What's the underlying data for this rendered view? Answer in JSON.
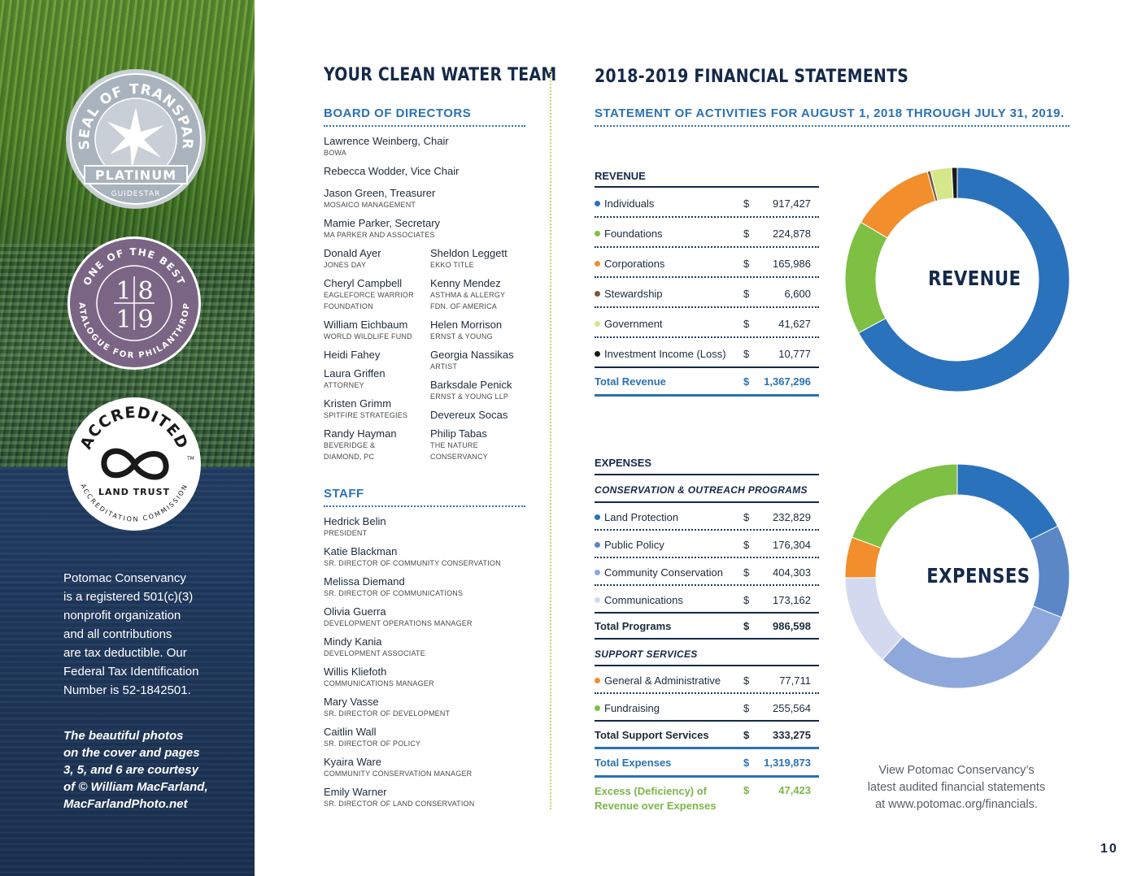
{
  "badges": {
    "transparency": {
      "arc_text": "SEAL OF TRANSPARENCY",
      "level": "PLATINUM",
      "org": "GUIDESTAR"
    },
    "best": {
      "arc_top": "ONE OF THE BEST",
      "years_top": "1|8",
      "years_bottom": "1|9",
      "arc_bottom": "CATALOGUE FOR PHILANTHROPY"
    },
    "accredited": {
      "arc_top": "ACCREDITED",
      "tm": "TM",
      "inner": "LAND TRUST",
      "arc_bottom": "ACCREDITATION COMMISSION"
    }
  },
  "sidebar": {
    "note_lines": [
      "Potomac Conservancy",
      "is a registered 501(c)(3)",
      "nonprofit organization",
      "and all contributions",
      "are tax deductible. Our",
      "Federal Tax Identification",
      "Number is 52-1842501."
    ],
    "credit_lines": [
      "The beautiful photos",
      "on the cover and pages",
      "3, 5, and 6 are courtesy",
      "of © William MacFarland,",
      "MacFarlandPhoto.net"
    ]
  },
  "team": {
    "title": "YOUR CLEAN WATER TEAM",
    "board_heading": "BOARD OF DIRECTORS",
    "board": [
      {
        "name": "Lawrence Weinberg, Chair",
        "role": "BOWA"
      },
      {
        "name": "Rebecca Wodder, Vice Chair",
        "role": ""
      },
      {
        "name": "Jason Green, Treasurer",
        "role": "MOSAICO MANAGEMENT"
      },
      {
        "name": "Mamie Parker, Secretary",
        "role": "MA PARKER AND ASSOCIATES"
      },
      {
        "name": "Donald Ayer",
        "role": "JONES DAY"
      },
      {
        "name": "Sheldon Leggett",
        "role": "EKKO TITLE"
      },
      {
        "name": "Cheryl Campbell",
        "role": "EAGLEFORCE WARRIOR\nFOUNDATION"
      },
      {
        "name": "Kenny Mendez",
        "role": "ASTHMA & ALLERGY\nFDN. OF AMERICA"
      },
      {
        "name": "William Eichbaum",
        "role": "WORLD WILDLIFE FUND"
      },
      {
        "name": "Helen Morrison",
        "role": "ERNST & YOUNG"
      },
      {
        "name": "Heidi Fahey",
        "role": ""
      },
      {
        "name": "Georgia Nassikas",
        "role": "ARTIST"
      },
      {
        "name": "Laura Griffen",
        "role": "ATTORNEY"
      },
      {
        "name": "Barksdale Penick",
        "role": "ERNST & YOUNG LLP"
      },
      {
        "name": "Kristen Grimm",
        "role": "SPITFIRE STRATEGIES"
      },
      {
        "name": "Devereux Socas",
        "role": ""
      },
      {
        "name": "Randy Hayman",
        "role": "BEVERIDGE &\nDIAMOND, PC"
      },
      {
        "name": "Philip Tabas",
        "role": "THE NATURE\nCONSERVANCY"
      }
    ],
    "staff_heading": "STAFF",
    "staff": [
      {
        "name": "Hedrick Belin",
        "role": "PRESIDENT"
      },
      {
        "name": "Katie Blackman",
        "role": "SR. DIRECTOR OF COMMUNITY CONSERVATION"
      },
      {
        "name": "Melissa Diemand",
        "role": "SR. DIRECTOR OF COMMUNICATIONS"
      },
      {
        "name": "Olivia Guerra",
        "role": "DEVELOPMENT OPERATIONS MANAGER"
      },
      {
        "name": "Mindy Kania",
        "role": "DEVELOPMENT ASSOCIATE"
      },
      {
        "name": "Willis Kliefoth",
        "role": "COMMUNICATIONS MANAGER"
      },
      {
        "name": "Mary Vasse",
        "role": "SR. DIRECTOR OF DEVELOPMENT"
      },
      {
        "name": "Caitlin Wall",
        "role": "SR. DIRECTOR OF POLICY"
      },
      {
        "name": "Kyaira Ware",
        "role": "COMMUNITY CONSERVATION MANAGER"
      },
      {
        "name": "Emily Warner",
        "role": "SR. DIRECTOR OF LAND CONSERVATION"
      }
    ]
  },
  "financials": {
    "title": "2018-2019 FINANCIAL STATEMENTS",
    "subtitle": "STATEMENT OF ACTIVITIES FOR AUGUST 1, 2018 THROUGH JULY 31, 2019.",
    "revenue_heading": "REVENUE",
    "revenue_rows": [
      {
        "label": "Individuals",
        "dollar": "$",
        "amount": "917,427",
        "color": "#2b72bc"
      },
      {
        "label": "Foundations",
        "dollar": "$",
        "amount": "224,878",
        "color": "#7ec043"
      },
      {
        "label": "Corporations",
        "dollar": "$",
        "amount": "165,986",
        "color": "#f28e2b"
      },
      {
        "label": "Stewardship",
        "dollar": "$",
        "amount": "6,600",
        "color": "#7b5a3c"
      },
      {
        "label": "Government",
        "dollar": "$",
        "amount": "41,627",
        "color": "#d6e68a"
      },
      {
        "label": "Investment Income (Loss)",
        "dollar": "$",
        "amount": "10,777",
        "color": "#1a1a1a"
      }
    ],
    "revenue_total": {
      "label": "Total Revenue",
      "dollar": "$",
      "amount": "1,367,296"
    },
    "expenses_heading": "EXPENSES",
    "programs_heading": "CONSERVATION & OUTREACH PROGRAMS",
    "program_rows": [
      {
        "label": "Land Protection",
        "dollar": "$",
        "amount": "232,829",
        "color": "#2b72bc"
      },
      {
        "label": "Public Policy",
        "dollar": "$",
        "amount": "176,304",
        "color": "#5b87c7"
      },
      {
        "label": "Community Conservation",
        "dollar": "$",
        "amount": "404,303",
        "color": "#8fa8dc"
      },
      {
        "label": "Communications",
        "dollar": "$",
        "amount": "173,162",
        "color": "#d3daf0"
      }
    ],
    "programs_total": {
      "label": "Total Programs",
      "dollar": "$",
      "amount": "986,598"
    },
    "support_heading": "SUPPORT SERVICES",
    "support_rows": [
      {
        "label": "General & Administrative",
        "dollar": "$",
        "amount": "77,711",
        "color": "#f28e2b"
      },
      {
        "label": "Fundraising",
        "dollar": "$",
        "amount": "255,564",
        "color": "#7ec043"
      }
    ],
    "support_total": {
      "label": "Total Support Services",
      "dollar": "$",
      "amount": "333,275"
    },
    "expenses_total": {
      "label": "Total Expenses",
      "dollar": "$",
      "amount": "1,319,873"
    },
    "excess": {
      "label_1": "Excess (Deficiency) of",
      "label_2": "Revenue over Expenses",
      "dollar": "$",
      "amount": "47,423"
    },
    "note_lines": [
      "View Potomac Conservancy’s",
      "latest audited financial statements",
      "at www.potomac.org/financials."
    ]
  },
  "chart_data": [
    {
      "type": "pie",
      "title": "REVENUE",
      "categories": [
        "Individuals",
        "Foundations",
        "Corporations",
        "Stewardship",
        "Government",
        "Investment Income (Loss)"
      ],
      "values": [
        917427,
        224878,
        165986,
        6600,
        41627,
        10777
      ],
      "colors": [
        "#2b72bc",
        "#7ec043",
        "#f28e2b",
        "#7b5a3c",
        "#d6e68a",
        "#1a1a1a"
      ]
    },
    {
      "type": "pie",
      "title": "EXPENSES",
      "categories": [
        "Land Protection",
        "Public Policy",
        "Community Conservation",
        "Communications",
        "General & Administrative",
        "Fundraising"
      ],
      "values": [
        232829,
        176304,
        404303,
        173162,
        77711,
        255564
      ],
      "colors": [
        "#2b72bc",
        "#5b87c7",
        "#8fa8dc",
        "#d3daf0",
        "#f28e2b",
        "#7ec043"
      ]
    }
  ],
  "page_number": "10"
}
